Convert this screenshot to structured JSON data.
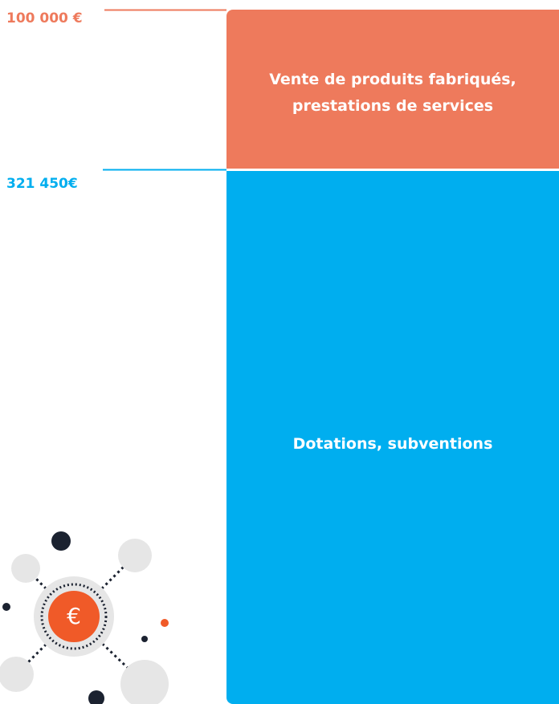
{
  "segments": [
    {
      "amount": "100 000 €",
      "label_lines": [
        "Vente de produits fabriqués,",
        "prestations de services"
      ]
    },
    {
      "amount": "321 450€",
      "label_lines": [
        "Dotations, subventions"
      ]
    }
  ],
  "icon": {
    "symbol": "€"
  }
}
